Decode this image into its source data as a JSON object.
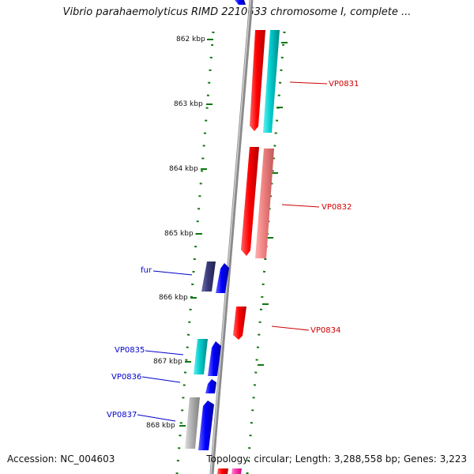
{
  "title": "Vibrio parahaemolyticus RIMD 2210633 chromosome I, complete ...",
  "accession_text": "Accession: NC_004603",
  "summary_text": "Topology: circular; Length: 3,288,558 bp; Genes: 3,223",
  "ruler": {
    "ticks": [
      {
        "kbp": 862,
        "label": "862 kbp"
      },
      {
        "kbp": 863,
        "label": "863 kbp"
      },
      {
        "kbp": 864,
        "label": "864 kbp"
      },
      {
        "kbp": 865,
        "label": "865 kbp"
      },
      {
        "kbp": 866,
        "label": "866 kbp"
      },
      {
        "kbp": 867,
        "label": "867 kbp"
      },
      {
        "kbp": 868,
        "label": "868 kbp"
      }
    ]
  },
  "genes": [
    {
      "label": "VP0831",
      "color": "#cc0000"
    },
    {
      "label": "VP0832",
      "color": "#cc0000"
    },
    {
      "label": "VP0834",
      "color": "#cc0000"
    },
    {
      "label": "fur",
      "color": "#0000cc"
    },
    {
      "label": "VP0835",
      "color": "#0000cc"
    },
    {
      "label": "VP0836",
      "color": "#0000cc"
    },
    {
      "label": "VP0837",
      "color": "#0000cc"
    }
  ],
  "colors": {
    "forward": "#ff0000",
    "forward_light": "#f08080",
    "reverse": "#0000ff",
    "reverse_dark": "#3a3a7a",
    "cyan": "#00cccc",
    "gray": "#9a9a9a",
    "magenta": "#ff33aa",
    "ruler_dots": "#117711"
  }
}
